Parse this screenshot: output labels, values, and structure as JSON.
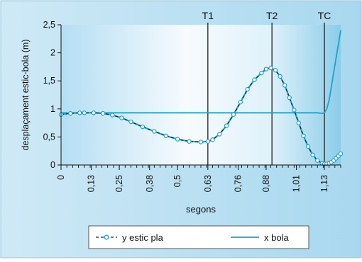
{
  "chart_data": {
    "type": "line",
    "xlabel": "segons",
    "ylabel": "desplaçament estic-bola (m)",
    "xlim": [
      0,
      1.2
    ],
    "ylim": [
      0,
      2.5
    ],
    "x_ticks": [
      "0",
      "0,13",
      "0,25",
      "0,38",
      "0,5",
      "0,63",
      "0,76",
      "0,88",
      "1,01",
      "1,13"
    ],
    "y_ticks": [
      "0",
      "0,5",
      "1",
      "1,5",
      "2",
      "2,5"
    ],
    "vertical_markers": [
      {
        "label": "T1",
        "x": 0.63
      },
      {
        "label": "T2",
        "x": 0.905
      },
      {
        "label": "TC",
        "x": 1.13
      }
    ],
    "legend_position": "bottom",
    "series": [
      {
        "name": "y estic pla",
        "style": "dashed-circles",
        "color": "#1fa3c9",
        "x": [
          0,
          0.04,
          0.08,
          0.1,
          0.14,
          0.18,
          0.22,
          0.26,
          0.3,
          0.35,
          0.4,
          0.45,
          0.5,
          0.55,
          0.6,
          0.63,
          0.65,
          0.68,
          0.71,
          0.74,
          0.77,
          0.8,
          0.83,
          0.86,
          0.88,
          0.9,
          0.92,
          0.94,
          0.96,
          0.98,
          1.0,
          1.02,
          1.04,
          1.06,
          1.08,
          1.1,
          1.12,
          1.13,
          1.14,
          1.15,
          1.16,
          1.17,
          1.18,
          1.19,
          1.2
        ],
        "values": [
          0.9,
          0.92,
          0.93,
          0.93,
          0.93,
          0.92,
          0.89,
          0.84,
          0.77,
          0.68,
          0.6,
          0.52,
          0.46,
          0.42,
          0.41,
          0.42,
          0.45,
          0.55,
          0.7,
          0.9,
          1.12,
          1.35,
          1.52,
          1.64,
          1.71,
          1.73,
          1.69,
          1.58,
          1.42,
          1.2,
          0.98,
          0.75,
          0.52,
          0.33,
          0.18,
          0.08,
          0.03,
          0.02,
          0.02,
          0.03,
          0.05,
          0.08,
          0.12,
          0.16,
          0.2
        ]
      },
      {
        "name": "x bola",
        "style": "solid",
        "color": "#1fa3c9",
        "x": [
          0,
          0.1,
          0.2,
          0.3,
          0.4,
          0.5,
          0.6,
          0.7,
          0.8,
          0.9,
          1.0,
          1.05,
          1.1,
          1.12,
          1.13,
          1.14,
          1.15,
          1.16,
          1.17,
          1.18,
          1.19,
          1.2
        ],
        "values": [
          0.93,
          0.93,
          0.93,
          0.93,
          0.93,
          0.93,
          0.93,
          0.93,
          0.93,
          0.93,
          0.93,
          0.93,
          0.93,
          0.92,
          0.93,
          1.0,
          1.15,
          1.4,
          1.65,
          1.9,
          2.15,
          2.4
        ]
      }
    ]
  }
}
